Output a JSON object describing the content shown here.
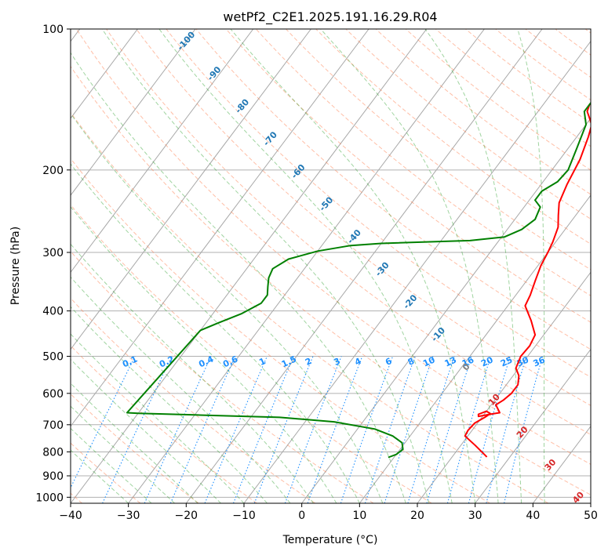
{
  "chart_data": {
    "type": "skew-t",
    "title": "wetPf2_C2E1.2025.191.16.29.R04",
    "xlabel": "Temperature (°C)",
    "ylabel": "Pressure (hPa)",
    "xlim": [
      -40,
      50
    ],
    "ylim": [
      1030,
      100
    ],
    "y_scale": "log",
    "x_ticks": [
      -40,
      -30,
      -20,
      -10,
      0,
      10,
      20,
      30,
      40,
      50
    ],
    "y_ticks": [
      100,
      200,
      300,
      400,
      500,
      600,
      700,
      800,
      900,
      1000
    ],
    "grid": true,
    "series": [
      {
        "color": "#ff0000",
        "points": [
          [
            26.0,
            820
          ],
          [
            22.5,
            775
          ],
          [
            19.5,
            740
          ],
          [
            19.3,
            720
          ],
          [
            19.5,
            695
          ],
          [
            20.5,
            675
          ],
          [
            21.0,
            663
          ],
          [
            20.0,
            655
          ],
          [
            19.0,
            665
          ],
          [
            19.3,
            672
          ],
          [
            21.0,
            665
          ],
          [
            22.5,
            660
          ],
          [
            21.5,
            645
          ],
          [
            20.8,
            635
          ],
          [
            21.5,
            620
          ],
          [
            22.0,
            600
          ],
          [
            22.0,
            575
          ],
          [
            21.0,
            550
          ],
          [
            19.5,
            530
          ],
          [
            18.8,
            500
          ],
          [
            19.0,
            475
          ],
          [
            18.5,
            450
          ],
          [
            16.0,
            420
          ],
          [
            13.0,
            390
          ],
          [
            12.5,
            370
          ],
          [
            11.5,
            345
          ],
          [
            10.5,
            320
          ],
          [
            10.0,
            300
          ],
          [
            9.5,
            285
          ],
          [
            8.5,
            265
          ],
          [
            7.0,
            250
          ],
          [
            5.5,
            235
          ],
          [
            4.5,
            215
          ],
          [
            3.5,
            190
          ],
          [
            2.0,
            170
          ],
          [
            1.0,
            160
          ],
          [
            -1.5,
            150
          ],
          [
            -2.0,
            145
          ],
          [
            -1.0,
            140
          ],
          [
            1.5,
            130
          ],
          [
            2.5,
            120
          ],
          [
            3.5,
            115
          ],
          [
            4.5,
            110
          ],
          [
            6.5,
            105
          ],
          [
            9.0,
            100
          ]
        ]
      },
      {
        "color": "#008000",
        "points": [
          [
            9.0,
            822
          ],
          [
            10.0,
            810
          ],
          [
            10.5,
            790
          ],
          [
            9.5,
            765
          ],
          [
            7.0,
            740
          ],
          [
            3.0,
            715
          ],
          [
            -5.0,
            690
          ],
          [
            -15.0,
            675
          ],
          [
            -30.0,
            667
          ],
          [
            -40.0,
            662
          ],
          [
            -42.0,
            660
          ],
          [
            -40.0,
            440
          ],
          [
            -38.0,
            425
          ],
          [
            -35.0,
            405
          ],
          [
            -33.0,
            385
          ],
          [
            -33.0,
            370
          ],
          [
            -34.0,
            355
          ],
          [
            -35.0,
            340
          ],
          [
            -35.5,
            325
          ],
          [
            -34.0,
            310
          ],
          [
            -30.0,
            298
          ],
          [
            -25.0,
            290
          ],
          [
            -20.0,
            287
          ],
          [
            -5.0,
            283
          ],
          [
            0.5,
            278
          ],
          [
            2.5,
            268
          ],
          [
            3.5,
            255
          ],
          [
            2.8,
            240
          ],
          [
            1.0,
            232
          ],
          [
            1.0,
            222
          ],
          [
            2.5,
            212
          ],
          [
            2.8,
            200
          ],
          [
            1.5,
            180
          ],
          [
            0.0,
            160
          ],
          [
            -2.0,
            150
          ],
          [
            -2.0,
            140
          ],
          [
            -2.5,
            125
          ],
          [
            -1.5,
            115
          ],
          [
            0.0,
            108
          ],
          [
            1.0,
            104
          ],
          [
            1.5,
            100
          ]
        ]
      }
    ],
    "dry_adiabat_labels": [
      "-100",
      "-90",
      "-80",
      "-70",
      "-60",
      "-50",
      "-40",
      "-30",
      "-20",
      "-10",
      "0",
      "10",
      "20",
      "30",
      "40"
    ],
    "mixing_ratio_labels": [
      "0.1",
      "0.2",
      "0.4",
      "0.6",
      "1",
      "1.5",
      "2",
      "3",
      "4",
      "6",
      "8",
      "10",
      "13",
      "16",
      "20",
      "25",
      "30",
      "36"
    ]
  },
  "colors": {
    "dry_adiabat": "#ff7f50",
    "moist_adiabat": "#2ca02c",
    "mixing_ratio": "#1e90ff",
    "isotherm": "#808080",
    "label_cold": "#1f77b4",
    "label_zero": "#808080",
    "label_warm": "#d62728"
  }
}
